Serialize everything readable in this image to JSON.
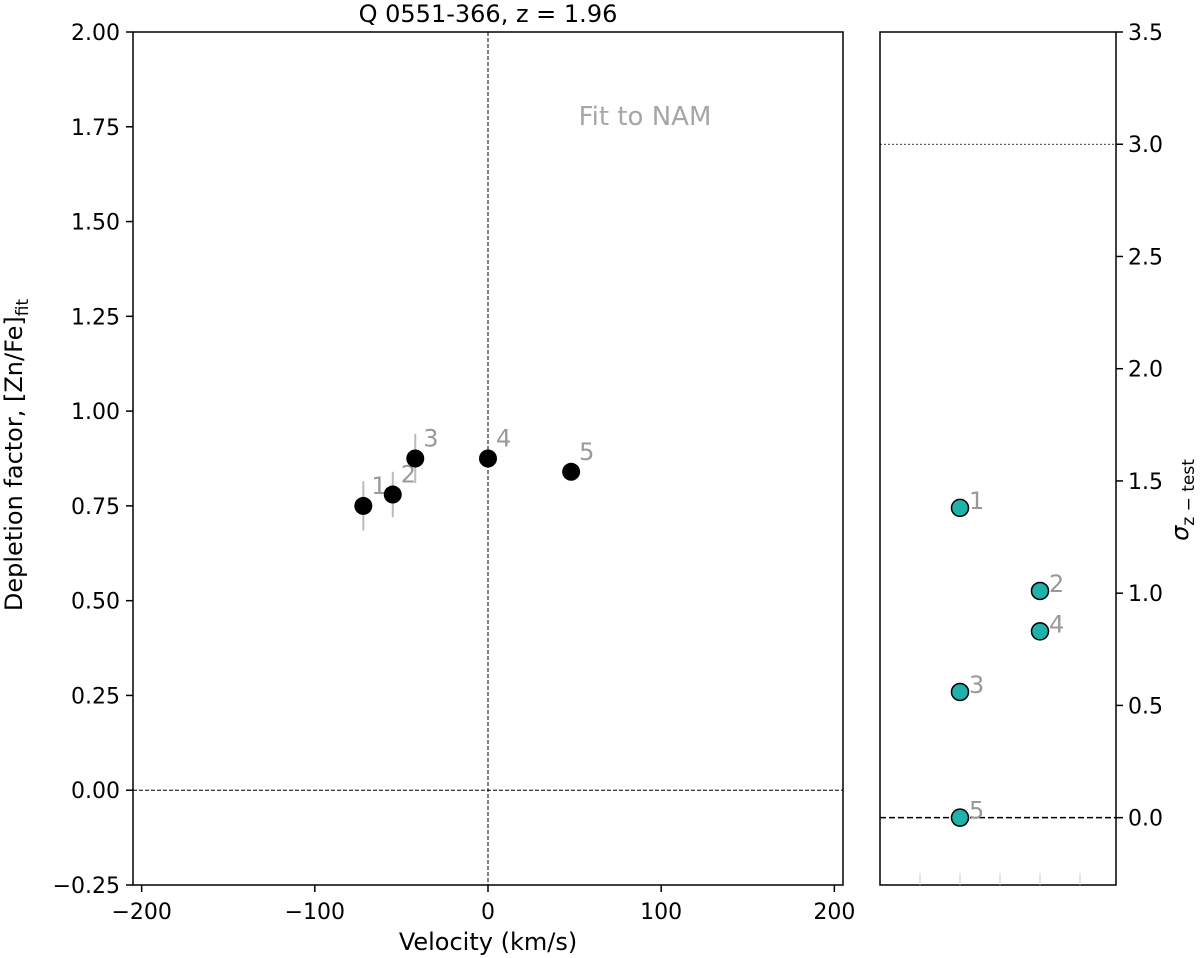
{
  "chart_data": [
    {
      "type": "scatter",
      "title": "Q 0551-366, z = 1.96",
      "xlabel": "Velocity (km/s)",
      "ylabel": "Depletion factor, [Zn/Fe]",
      "ylabel_sub": "fit",
      "xlim": [
        -205,
        205
      ],
      "ylim": [
        -0.25,
        2.0
      ],
      "xticks": [
        -200,
        -100,
        0,
        100,
        200
      ],
      "xtick_labels": [
        "−200",
        "−100",
        "0",
        "100",
        "200"
      ],
      "yticks": [
        -0.25,
        0.0,
        0.25,
        0.5,
        0.75,
        1.0,
        1.25,
        1.5,
        1.75,
        2.0
      ],
      "ytick_labels": [
        "−0.25",
        "0.00",
        "0.25",
        "0.50",
        "0.75",
        "1.00",
        "1.25",
        "1.50",
        "1.75",
        "2.00"
      ],
      "annotation": "Fit to NAM",
      "hline": 0.0,
      "vline": 0,
      "points": [
        {
          "label": "1",
          "x": -72,
          "y": 0.75,
          "yerr": 0.065
        },
        {
          "label": "2",
          "x": -55,
          "y": 0.78,
          "yerr": 0.06
        },
        {
          "label": "3",
          "x": -42,
          "y": 0.875,
          "yerr": 0.065
        },
        {
          "label": "4",
          "x": 0,
          "y": 0.875,
          "yerr": 0
        },
        {
          "label": "5",
          "x": 48,
          "y": 0.84,
          "yerr": 0
        }
      ],
      "marker_color": "#000000",
      "errorbar_color": "#bbbbbb"
    },
    {
      "type": "scatter",
      "ylabel": "σ",
      "ylabel_sub": "z − test",
      "ylim": [
        -0.3,
        3.5
      ],
      "yticks": [
        0.0,
        0.5,
        1.0,
        1.5,
        2.0,
        2.5,
        3.0,
        3.5
      ],
      "ytick_labels": [
        "0.0",
        "0.5",
        "1.0",
        "1.5",
        "2.0",
        "2.5",
        "3.0",
        "3.5"
      ],
      "hlines": [
        3.0,
        0.0
      ],
      "points": [
        {
          "label": "1",
          "x": 2,
          "y": 1.38
        },
        {
          "label": "2",
          "x": 4,
          "y": 1.01
        },
        {
          "label": "3",
          "x": 2,
          "y": 0.56
        },
        {
          "label": "4",
          "x": 4,
          "y": 0.83
        },
        {
          "label": "5",
          "x": 2,
          "y": 0.0
        }
      ],
      "marker_color": "#20b2aa"
    }
  ]
}
